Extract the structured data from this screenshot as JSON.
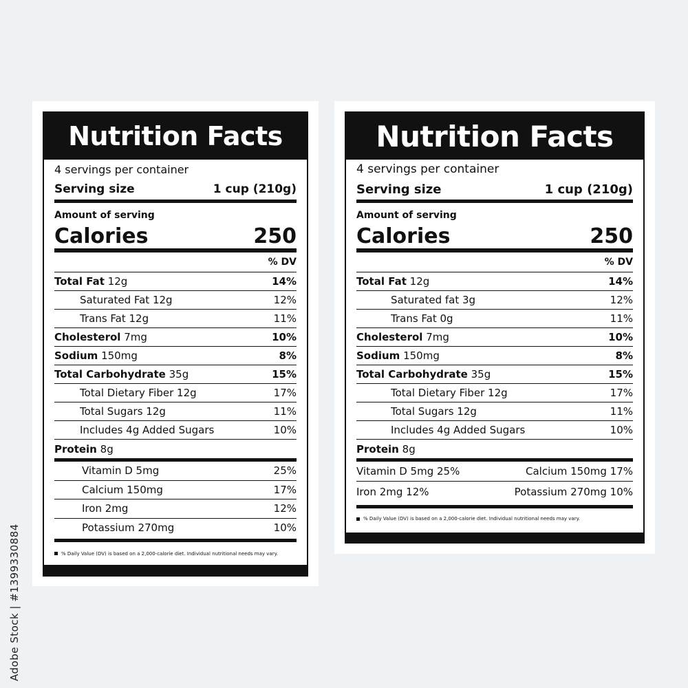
{
  "watermark": "Adobe Stock | #1399330884",
  "labels": [
    {
      "title": "Nutrition Facts",
      "servings": "4 servings per container",
      "serving_size_label": "Serving size",
      "serving_size_value": "1 cup (210g)",
      "amount_label": "Amount of serving",
      "calories_label": "Calories",
      "calories_value": "250",
      "dv_header": "% DV",
      "nutrients": [
        {
          "name": "Total Fat",
          "amount": "12g",
          "dv": "14%",
          "bold": true,
          "indent": false
        },
        {
          "name": "Saturated Fat 12g",
          "amount": "",
          "dv": "12%",
          "bold": false,
          "indent": true
        },
        {
          "name": "Trans Fat 12g",
          "amount": "",
          "dv": "11%",
          "bold": false,
          "indent": true
        },
        {
          "name": "Cholesterol",
          "amount": "7mg",
          "dv": "10%",
          "bold": true,
          "indent": false
        },
        {
          "name": "Sodium",
          "amount": "150mg",
          "dv": "8%",
          "bold": true,
          "indent": false
        },
        {
          "name": "Total Carbohydrate",
          "amount": "35g",
          "dv": "15%",
          "bold": true,
          "indent": false
        },
        {
          "name": "Total Dietary Fiber 12g",
          "amount": "",
          "dv": "17%",
          "bold": false,
          "indent": true
        },
        {
          "name": "Total Sugars 12g",
          "amount": "",
          "dv": "11%",
          "bold": false,
          "indent": true
        },
        {
          "name": "Includes 4g Added Sugars",
          "amount": "",
          "dv": "10%",
          "bold": false,
          "indent": true
        },
        {
          "name": "Protein",
          "amount": "8g",
          "dv": "",
          "bold": true,
          "indent": false
        }
      ],
      "vitamins": [
        {
          "name": "Vitamin D 5mg",
          "dv": "25%"
        },
        {
          "name": "Calcium 150mg",
          "dv": "17%"
        },
        {
          "name": "Iron 2mg",
          "dv": "12%"
        },
        {
          "name": "Potassium 270mg",
          "dv": "10%"
        }
      ],
      "footnote": "% Daily Value (DV) is based on a 2,000-calorie diet. Individual nutritional needs may vary."
    },
    {
      "title": "Nutrition Facts",
      "servings": "4 servings per container",
      "serving_size_label": "Serving size",
      "serving_size_value": "1 cup (210g)",
      "amount_label": "Amount of serving",
      "calories_label": "Calories",
      "calories_value": "250",
      "dv_header": "% DV",
      "nutrients": [
        {
          "name": "Total Fat",
          "amount": "12g",
          "dv": "14%",
          "bold": true,
          "indent": false
        },
        {
          "name": "Saturated fat 3g",
          "amount": "",
          "dv": "12%",
          "bold": false,
          "indent": true
        },
        {
          "name": "Trans Fat 0g",
          "amount": "",
          "dv": "11%",
          "bold": false,
          "indent": true
        },
        {
          "name": "Cholesterol",
          "amount": "7mg",
          "dv": "10%",
          "bold": true,
          "indent": false
        },
        {
          "name": "Sodium",
          "amount": "150mg",
          "dv": "8%",
          "bold": true,
          "indent": false
        },
        {
          "name": "Total Carbohydrate",
          "amount": "35g",
          "dv": "15%",
          "bold": true,
          "indent": false
        },
        {
          "name": "Total Dietary Fiber 12g",
          "amount": "",
          "dv": "17%",
          "bold": false,
          "indent": true
        },
        {
          "name": "Total Sugars 12g",
          "amount": "",
          "dv": "11%",
          "bold": false,
          "indent": true
        },
        {
          "name": "Includes 4g Added Sugars",
          "amount": "",
          "dv": "10%",
          "bold": false,
          "indent": true
        },
        {
          "name": "Protein",
          "amount": "8g",
          "dv": "",
          "bold": true,
          "indent": false
        }
      ],
      "vitamin_pairs": [
        {
          "left": "Vitamin D 5mg 25%",
          "right": "Calcium 150mg 17%"
        },
        {
          "left": "Iron 2mg 12%",
          "right": "Potassium 270mg 10%"
        }
      ],
      "footnote": "% Daily Value (DV) is based on a 2,000-calorie diet. Individual nutritional needs may vary."
    }
  ]
}
